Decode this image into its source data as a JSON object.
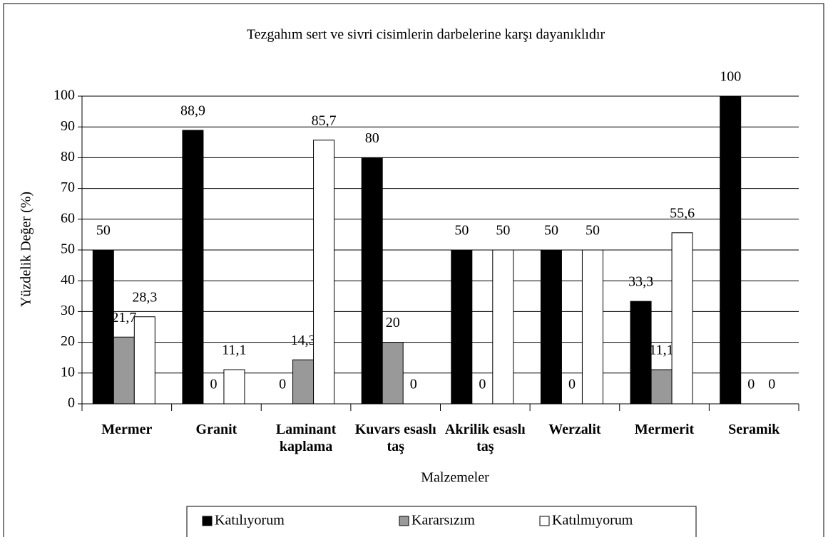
{
  "chart_data": {
    "type": "bar",
    "title": "Tezgahım sert ve sivri cisimlerin darbelerine karşı dayanıklıdır",
    "x_label": "Malzemeler",
    "y_label": "Yüzdelik Değer (%)",
    "categories": [
      "Mermer",
      "Granit",
      "Laminant kaplama",
      "Kuvars esaslı taş",
      "Akrilik esaslı taş",
      "Werzalit",
      "Mermerit",
      "Seramik"
    ],
    "series": [
      {
        "name": "Katılıyorum",
        "color": "#000000",
        "values": [
          50,
          88.9,
          0,
          80,
          50,
          50,
          33.3,
          100
        ],
        "value_labels": [
          "50",
          "88,9",
          "0",
          "80",
          "50",
          "50",
          "33,3",
          "100"
        ]
      },
      {
        "name": "Kararsızım",
        "color": "#999999",
        "values": [
          21.7,
          0,
          14.3,
          20,
          0,
          0,
          11.1,
          0
        ],
        "value_labels": [
          "21,7",
          "0",
          "14,3",
          "20",
          "0",
          "0",
          "11,1",
          "0"
        ]
      },
      {
        "name": "Katılmıyorum",
        "color": "#ffffff",
        "values": [
          28.3,
          11.1,
          85.7,
          0,
          50,
          50,
          55.6,
          0
        ],
        "value_labels": [
          "28,3",
          "11,1",
          "85,7",
          "0",
          "50",
          "50",
          "55,6",
          "0"
        ]
      }
    ],
    "ylim": [
      0,
      100
    ],
    "yticks": [
      0,
      10,
      20,
      30,
      40,
      50,
      60,
      70,
      80,
      90,
      100
    ],
    "grid": true,
    "legend": "bottom"
  }
}
